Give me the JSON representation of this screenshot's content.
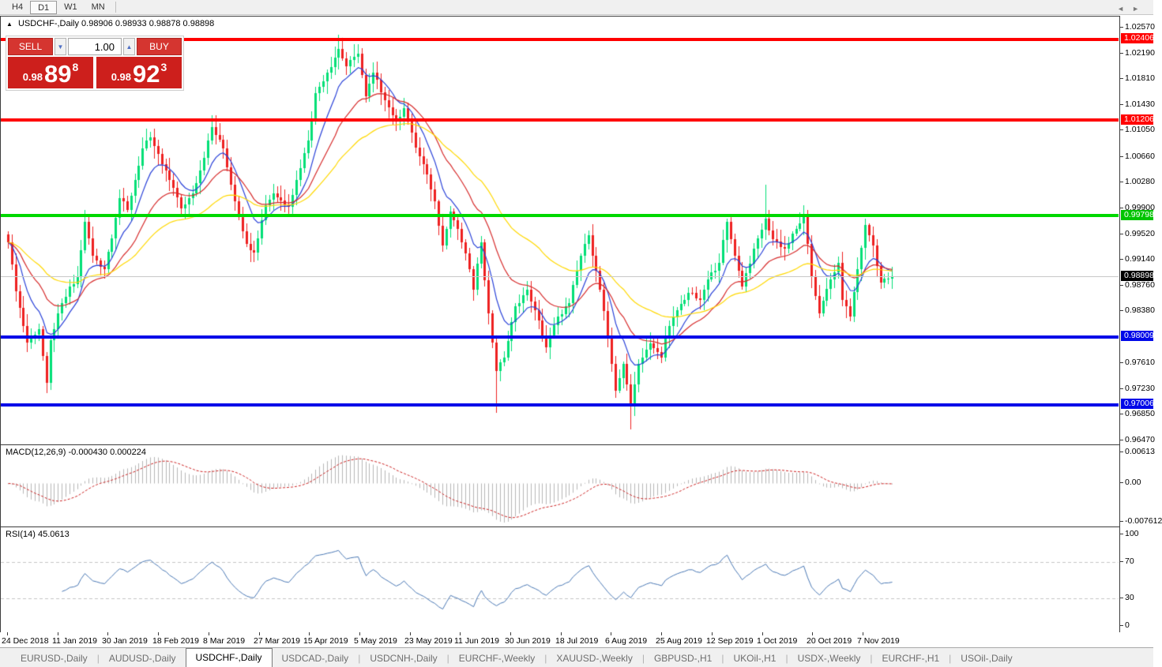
{
  "toolbar": {
    "timeframes": [
      {
        "label": "H4",
        "active": false
      },
      {
        "label": "D1",
        "active": true
      },
      {
        "label": "W1",
        "active": false
      },
      {
        "label": "MN",
        "active": false
      }
    ]
  },
  "chart_header": {
    "collapse_icon": "▲",
    "symbol": "USDCHF-,Daily",
    "open": "0.98906",
    "high": "0.98933",
    "low": "0.98878",
    "close": "0.98898"
  },
  "trade_panel": {
    "sell_label": "SELL",
    "buy_label": "BUY",
    "volume": "1.00",
    "spin_down_icon": "▼",
    "spin_up_icon": "▲",
    "sell_price": {
      "prefix": "0.98",
      "big": "89",
      "sup": "8"
    },
    "buy_price": {
      "prefix": "0.98",
      "big": "92",
      "sup": "3"
    }
  },
  "levels": [
    {
      "price": 1.02406,
      "label": "1.02406",
      "color": "#ff0000",
      "thickness": 4,
      "badge_bg": "#ff0000"
    },
    {
      "price": 1.01206,
      "label": "1.01206",
      "color": "#ff0000",
      "thickness": 4,
      "badge_bg": "#ff0000"
    },
    {
      "price": 0.99798,
      "label": "0.99798",
      "color": "#00d800",
      "thickness": 4,
      "badge_bg": "#00c400"
    },
    {
      "price": 0.98898,
      "label": "0.98898",
      "color": "#c8c8c8",
      "thickness": 1,
      "badge_bg": "#000000"
    },
    {
      "price": 0.98009,
      "label": "0.98009",
      "color": "#0008e8",
      "thickness": 4,
      "badge_bg": "#0008e8"
    },
    {
      "price": 0.97006,
      "label": "0.97006",
      "color": "#0008e8",
      "thickness": 4,
      "badge_bg": "#0008e8"
    }
  ],
  "chart_data": {
    "type": "candlestick",
    "symbol": "USDCHF-",
    "timeframe": "Daily",
    "ohlc_display": {
      "open": "0.98906",
      "high": "0.98933",
      "low": "0.98878",
      "close": "0.98898"
    },
    "price": {
      "ylim": [
        0.96412,
        1.02733
      ],
      "ticks": [
        {
          "v": 1.0257,
          "t": "1.02570"
        },
        {
          "v": 1.0219,
          "t": "1.02190"
        },
        {
          "v": 1.0181,
          "t": "1.01810"
        },
        {
          "v": 1.0143,
          "t": "1.01430"
        },
        {
          "v": 1.0105,
          "t": "1.01050"
        },
        {
          "v": 1.0066,
          "t": "1.00660"
        },
        {
          "v": 1.0028,
          "t": "1.00280"
        },
        {
          "v": 0.999,
          "t": "0.99900"
        },
        {
          "v": 0.9952,
          "t": "0.99520"
        },
        {
          "v": 0.9914,
          "t": "0.99140"
        },
        {
          "v": 0.9876,
          "t": "0.98760"
        },
        {
          "v": 0.9838,
          "t": "0.98380"
        },
        {
          "v": 0.9761,
          "t": "0.97610"
        },
        {
          "v": 0.9723,
          "t": "0.97230"
        },
        {
          "v": 0.9685,
          "t": "0.96850"
        },
        {
          "v": 0.9647,
          "t": "0.96470"
        }
      ]
    },
    "anchors": [
      [
        0,
        0.994
      ],
      [
        2,
        0.9868
      ],
      [
        5,
        0.9792
      ],
      [
        8,
        0.9812
      ],
      [
        10,
        0.9732
      ],
      [
        11,
        0.9795
      ],
      [
        14,
        0.985
      ],
      [
        18,
        0.9888
      ],
      [
        20,
        0.997
      ],
      [
        22,
        0.992
      ],
      [
        25,
        0.99
      ],
      [
        29,
        1.0005
      ],
      [
        31,
        0.9988
      ],
      [
        35,
        1.0078
      ],
      [
        37,
        1.0095
      ],
      [
        40,
        1.0055
      ],
      [
        43,
        1.002
      ],
      [
        45,
        0.999
      ],
      [
        48,
        1.0012
      ],
      [
        51,
        1.0065
      ],
      [
        53,
        1.011
      ],
      [
        56,
        1.0078
      ],
      [
        59,
        1.0
      ],
      [
        62,
        0.9938
      ],
      [
        64,
        0.9925
      ],
      [
        67,
        0.9995
      ],
      [
        69,
        1.0012
      ],
      [
        73,
        0.9992
      ],
      [
        75,
        1.0032
      ],
      [
        78,
        1.009
      ],
      [
        80,
        1.016
      ],
      [
        83,
        1.019
      ],
      [
        86,
        1.0225
      ],
      [
        88,
        1.02
      ],
      [
        91,
        1.0218
      ],
      [
        93,
        1.0155
      ],
      [
        95,
        1.019
      ],
      [
        98,
        1.015
      ],
      [
        101,
        1.0118
      ],
      [
        103,
        1.0138
      ],
      [
        106,
        1.008
      ],
      [
        109,
        1.004
      ],
      [
        111,
        1.0
      ],
      [
        113,
        0.9935
      ],
      [
        115,
        0.9985
      ],
      [
        117,
        0.996
      ],
      [
        120,
        0.99
      ],
      [
        121,
        0.987
      ],
      [
        123,
        0.994
      ],
      [
        125,
        0.9835
      ],
      [
        127,
        0.975
      ],
      [
        129,
        0.977
      ],
      [
        132,
        0.9845
      ],
      [
        135,
        0.987
      ],
      [
        137,
        0.984
      ],
      [
        140,
        0.9785
      ],
      [
        143,
        0.983
      ],
      [
        146,
        0.985
      ],
      [
        149,
        0.992
      ],
      [
        151,
        0.995
      ],
      [
        154,
        0.987
      ],
      [
        156,
        0.98
      ],
      [
        158,
        0.972
      ],
      [
        160,
        0.976
      ],
      [
        162,
        0.97
      ],
      [
        164,
        0.976
      ],
      [
        167,
        0.979
      ],
      [
        170,
        0.977
      ],
      [
        171,
        0.98
      ],
      [
        174,
        0.984
      ],
      [
        177,
        0.9865
      ],
      [
        180,
        0.9855
      ],
      [
        182,
        0.9885
      ],
      [
        185,
        0.991
      ],
      [
        187,
        0.997
      ],
      [
        189,
        0.992
      ],
      [
        191,
        0.9875
      ],
      [
        194,
        0.993
      ],
      [
        197,
        0.9975
      ],
      [
        199,
        0.9945
      ],
      [
        202,
        0.993
      ],
      [
        205,
        0.996
      ],
      [
        207,
        0.9978
      ],
      [
        209,
        0.989
      ],
      [
        211,
        0.9835
      ],
      [
        214,
        0.9885
      ],
      [
        216,
        0.991
      ],
      [
        217,
        0.9855
      ],
      [
        219,
        0.983
      ],
      [
        221,
        0.99
      ],
      [
        223,
        0.9965
      ],
      [
        225,
        0.9935
      ],
      [
        227,
        0.988
      ],
      [
        230,
        0.98898
      ]
    ],
    "wick_overrides": {
      "10": {
        "low": 0.9717
      },
      "20": {
        "high": 0.9987
      },
      "37": {
        "high": 1.0103
      },
      "53": {
        "high": 1.0127
      },
      "86": {
        "high": 1.0246
      },
      "127": {
        "low": 0.9688
      },
      "162": {
        "low": 0.9663
      },
      "197": {
        "high": 1.0025
      }
    },
    "style": {
      "up": "#00df76",
      "down": "#ee2020",
      "axis_line": "#3c3c3c"
    },
    "indicators": {
      "ma": [
        {
          "name": "fast-ma",
          "period": 9,
          "color": "#2840d8"
        },
        {
          "name": "mid-ma",
          "period": 21,
          "color": "#d62a2a"
        },
        {
          "name": "slow-ma",
          "period": 45,
          "color": "#ffd800"
        }
      ],
      "macd": {
        "label": "MACD(12,26,9)",
        "values": [
          "-0.000430",
          "0.000224"
        ],
        "fast": 12,
        "slow": 26,
        "signal": 9,
        "ylim": [
          -0.008488,
          0.007545
        ],
        "axis": [
          {
            "v": 0.00613,
            "t": "0.00613"
          },
          {
            "v": 0,
            "t": "0.00"
          },
          {
            "v": -0.007612,
            "t": "-0.007612"
          }
        ],
        "bar_color": "#b6b6b6",
        "signal_color": "#cc2222"
      },
      "rsi": {
        "label": "RSI(14)",
        "value": "45.0613",
        "period": 14,
        "ylim": [
          -7,
          108
        ],
        "axis": [
          {
            "v": 100,
            "t": "100"
          },
          {
            "v": 70,
            "t": "70"
          },
          {
            "v": 30,
            "t": "30"
          },
          {
            "v": 0,
            "t": "0"
          }
        ],
        "levels": [
          70,
          30
        ],
        "line_color": "#4a78b4",
        "level_color": "#c4c4c4"
      }
    }
  },
  "time_axis": {
    "labels": [
      "24 Dec 2018",
      "11 Jan 2019",
      "30 Jan 2019",
      "18 Feb 2019",
      "8 Mar 2019",
      "27 Mar 2019",
      "15 Apr 2019",
      "5 May 2019",
      "23 May 2019",
      "11 Jun 2019",
      "30 Jun 2019",
      "18 Jul 2019",
      "6 Aug 2019",
      "25 Aug 2019",
      "12 Sep 2019",
      "1 Oct 2019",
      "20 Oct 2019",
      "7 Nov 2019"
    ]
  },
  "tabs": {
    "items": [
      {
        "label": "EURUSD-,Daily",
        "active": false
      },
      {
        "label": "AUDUSD-,Daily",
        "active": false
      },
      {
        "label": "USDCHF-,Daily",
        "active": true
      },
      {
        "label": "USDCAD-,Daily",
        "active": false
      },
      {
        "label": "USDCNH-,Daily",
        "active": false
      },
      {
        "label": "EURCHF-,Weekly",
        "active": false
      },
      {
        "label": "XAUUSD-,Weekly",
        "active": false
      },
      {
        "label": "GBPUSD-,H1",
        "active": false
      },
      {
        "label": "UKOil-,H1",
        "active": false
      },
      {
        "label": "USDX-,Weekly",
        "active": false
      },
      {
        "label": "EURCHF-,H1",
        "active": false
      },
      {
        "label": "USOil-,Daily",
        "active": false
      }
    ],
    "scroll_left": "◄",
    "scroll_right": "►"
  }
}
